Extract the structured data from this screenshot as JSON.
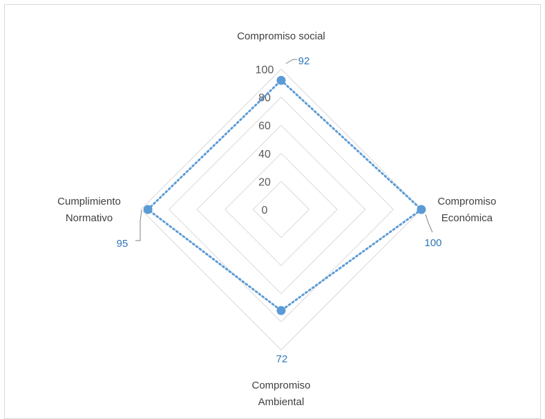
{
  "chart_data": {
    "type": "radar",
    "categories": [
      "Compromiso social",
      "Compromiso Económica",
      "Compromiso Ambiental",
      "Cumplimiento Normativo"
    ],
    "category_label_lines": [
      [
        "Compromiso social"
      ],
      [
        "Compromiso",
        "Económica"
      ],
      [
        "Compromiso",
        "Ambiental"
      ],
      [
        "Cumplimiento",
        "Normativo"
      ]
    ],
    "series": [
      {
        "values": [
          92,
          100,
          72,
          95
        ],
        "color": "#5b9bd5",
        "line_style": "dotted",
        "markers": "circle"
      }
    ],
    "data_labels": [
      "92",
      "100",
      "72",
      "95"
    ],
    "radial_axis": {
      "min": 0,
      "max": 100,
      "ticks": [
        0,
        20,
        40,
        60,
        80,
        100
      ],
      "tick_labels": [
        "0",
        "20",
        "40",
        "60",
        "80",
        "100"
      ]
    },
    "gridlines": true,
    "grid_color": "#d9d9d9",
    "legend": "none"
  }
}
